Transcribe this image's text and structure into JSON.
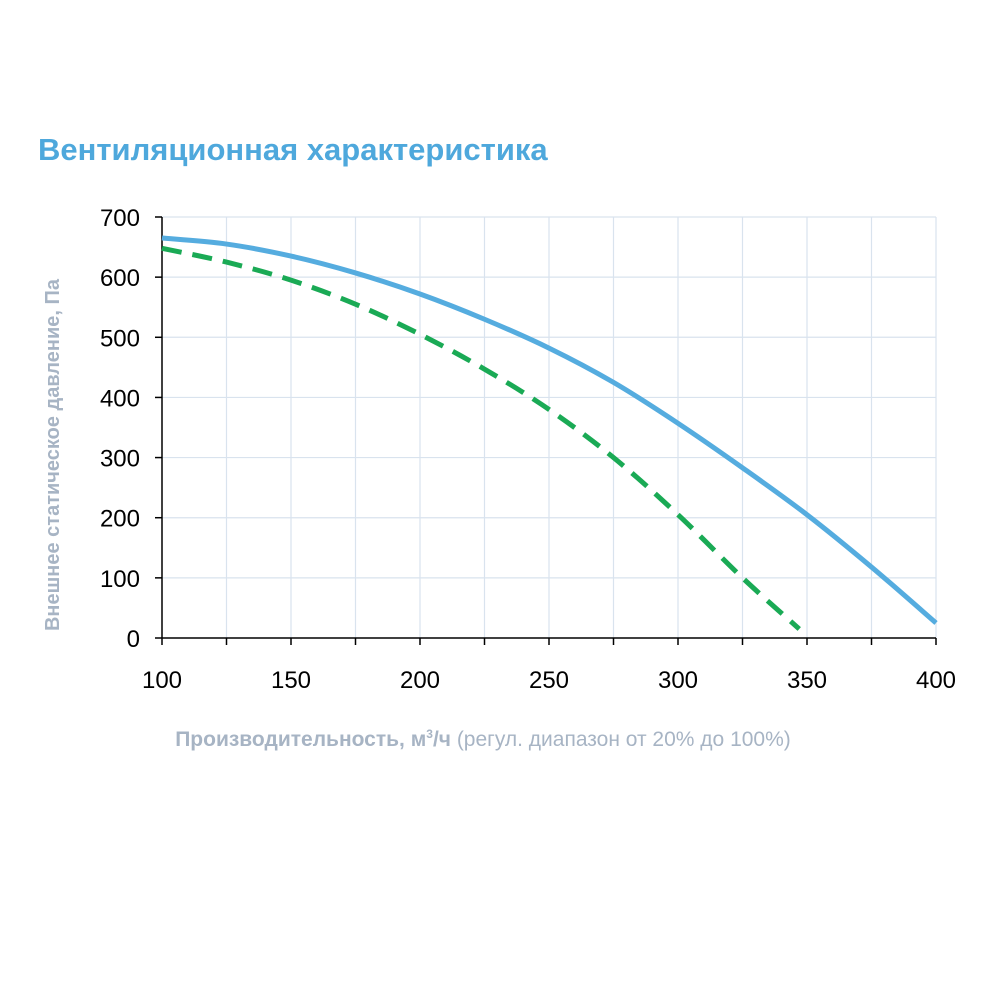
{
  "chart_data": {
    "type": "line",
    "title": "Вентиляционная характеристика",
    "ylabel": "Внешнее статическое давление, Па",
    "xlabel": {
      "main": "Производительность, м",
      "sup": "3",
      "unit": "/ч",
      "note": "(регул. диапазон от 20% до 100%)"
    },
    "xlim": [
      100,
      400
    ],
    "ylim": [
      0,
      700
    ],
    "x_ticks": [
      "100",
      "150",
      "200",
      "250",
      "300",
      "350",
      "400"
    ],
    "y_ticks": [
      "0",
      "100",
      "200",
      "300",
      "400",
      "500",
      "600",
      "700"
    ],
    "grid": true,
    "series": [
      {
        "style": "solid",
        "color": "#55acdf",
        "x": [
          100,
          125,
          150,
          175,
          200,
          225,
          250,
          275,
          300,
          325,
          350,
          375,
          400
        ],
        "y": [
          665,
          655,
          635,
          607,
          572,
          530,
          482,
          425,
          357,
          283,
          205,
          118,
          25
        ]
      },
      {
        "style": "dashed",
        "color": "#1aaa55",
        "x": [
          100,
          125,
          150,
          175,
          200,
          225,
          250,
          275,
          300,
          325,
          347
        ],
        "y": [
          648,
          625,
          595,
          555,
          505,
          447,
          380,
          300,
          205,
          100,
          15
        ]
      }
    ]
  }
}
